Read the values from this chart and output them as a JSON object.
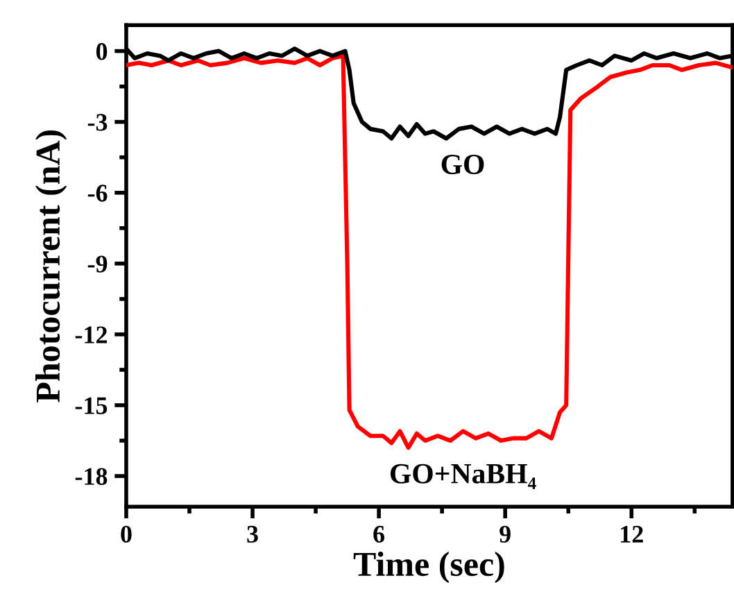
{
  "chart_data": {
    "type": "line",
    "xlabel": "Time (sec)",
    "ylabel": "Photocurrent (nA)",
    "xlim": [
      0,
      14.4
    ],
    "ylim": [
      -19.3,
      1.1
    ],
    "xticks": [
      0,
      3,
      6,
      9,
      12
    ],
    "yticks": [
      0,
      -3,
      -6,
      -9,
      -12,
      -15,
      -18
    ],
    "grid": false,
    "legend": false,
    "marker": "none",
    "line_style": "solid",
    "series": [
      {
        "name": "GO",
        "color": "#000000",
        "x": [
          0,
          0.2,
          0.5,
          0.8,
          1.0,
          1.3,
          1.6,
          1.9,
          2.2,
          2.5,
          2.8,
          3.1,
          3.4,
          3.7,
          4.0,
          4.3,
          4.6,
          4.9,
          5.2,
          5.3,
          5.4,
          5.6,
          5.8,
          6.1,
          6.3,
          6.5,
          6.7,
          6.9,
          7.1,
          7.3,
          7.6,
          7.9,
          8.2,
          8.5,
          8.8,
          9.1,
          9.4,
          9.7,
          10.0,
          10.2,
          10.3,
          10.45,
          10.7,
          11.0,
          11.3,
          11.6,
          12.0,
          12.3,
          12.6,
          13.0,
          13.4,
          13.8,
          14.1,
          14.4
        ],
        "values": [
          0.1,
          -0.3,
          -0.1,
          -0.2,
          -0.4,
          -0.1,
          -0.3,
          -0.1,
          0,
          -0.3,
          -0.1,
          -0.3,
          -0.1,
          -0.2,
          0.1,
          -0.2,
          0,
          -0.2,
          0,
          -0.8,
          -2.2,
          -3.0,
          -3.3,
          -3.4,
          -3.7,
          -3.2,
          -3.6,
          -3.1,
          -3.5,
          -3.4,
          -3.7,
          -3.3,
          -3.2,
          -3.5,
          -3.2,
          -3.5,
          -3.3,
          -3.5,
          -3.3,
          -3.5,
          -2.8,
          -0.8,
          -0.6,
          -0.4,
          -0.6,
          -0.2,
          -0.4,
          -0.1,
          -0.3,
          -0.1,
          -0.3,
          -0.1,
          -0.3,
          -0.2
        ]
      },
      {
        "name": "GO+NaBH₄",
        "color": "#ff0000",
        "x": [
          0,
          0.3,
          0.6,
          1.0,
          1.3,
          1.7,
          2.0,
          2.4,
          2.8,
          3.2,
          3.6,
          4.0,
          4.3,
          4.6,
          4.9,
          5.15,
          5.25,
          5.3,
          5.5,
          5.8,
          6.1,
          6.3,
          6.5,
          6.7,
          6.9,
          7.1,
          7.4,
          7.7,
          8.0,
          8.3,
          8.6,
          8.9,
          9.2,
          9.5,
          9.8,
          10.1,
          10.3,
          10.45,
          10.55,
          10.8,
          11.2,
          11.5,
          11.9,
          12.2,
          12.5,
          12.9,
          13.2,
          13.6,
          14.0,
          14.4
        ],
        "values": [
          -0.6,
          -0.5,
          -0.6,
          -0.4,
          -0.6,
          -0.4,
          -0.6,
          -0.5,
          -0.3,
          -0.5,
          -0.4,
          -0.5,
          -0.3,
          -0.6,
          -0.3,
          -0.2,
          -9.0,
          -15.2,
          -15.9,
          -16.3,
          -16.3,
          -16.6,
          -16.1,
          -16.8,
          -16.2,
          -16.5,
          -16.3,
          -16.5,
          -16.1,
          -16.4,
          -16.2,
          -16.5,
          -16.4,
          -16.4,
          -16.1,
          -16.4,
          -15.3,
          -15.0,
          -2.5,
          -2.0,
          -1.5,
          -1.1,
          -0.9,
          -0.8,
          -0.6,
          -0.6,
          -0.8,
          -0.6,
          -0.5,
          -0.7
        ]
      }
    ]
  }
}
